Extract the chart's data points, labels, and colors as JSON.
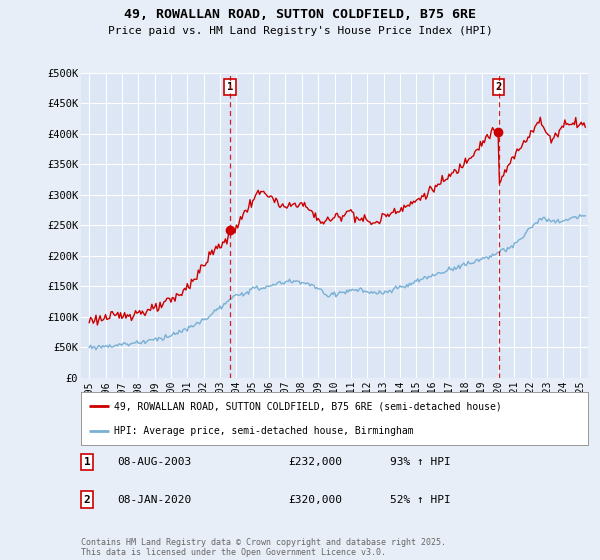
{
  "title_line1": "49, ROWALLAN ROAD, SUTTON COLDFIELD, B75 6RE",
  "title_line2": "Price paid vs. HM Land Registry's House Price Index (HPI)",
  "ylabel_ticks": [
    "£0",
    "£50K",
    "£100K",
    "£150K",
    "£200K",
    "£250K",
    "£300K",
    "£350K",
    "£400K",
    "£450K",
    "£500K"
  ],
  "ytick_values": [
    0,
    50000,
    100000,
    150000,
    200000,
    250000,
    300000,
    350000,
    400000,
    450000,
    500000
  ],
  "xlim": [
    1994.5,
    2025.5
  ],
  "ylim": [
    0,
    500000
  ],
  "bg_color": "#e8eef7",
  "plot_bg": "#dce6f5",
  "red_color": "#cc0000",
  "blue_color": "#7ab0d4",
  "grid_color": "#ffffff",
  "marker1_date": 2003.6,
  "marker1_price": 232000,
  "marker2_date": 2020.03,
  "marker2_price": 320000,
  "legend_label1": "49, ROWALLAN ROAD, SUTTON COLDFIELD, B75 6RE (semi-detached house)",
  "legend_label2": "HPI: Average price, semi-detached house, Birmingham",
  "table_row1": [
    "1",
    "08-AUG-2003",
    "£232,000",
    "93% ↑ HPI"
  ],
  "table_row2": [
    "2",
    "08-JAN-2020",
    "£320,000",
    "52% ↑ HPI"
  ],
  "footer": "Contains HM Land Registry data © Crown copyright and database right 2025.\nThis data is licensed under the Open Government Licence v3.0."
}
